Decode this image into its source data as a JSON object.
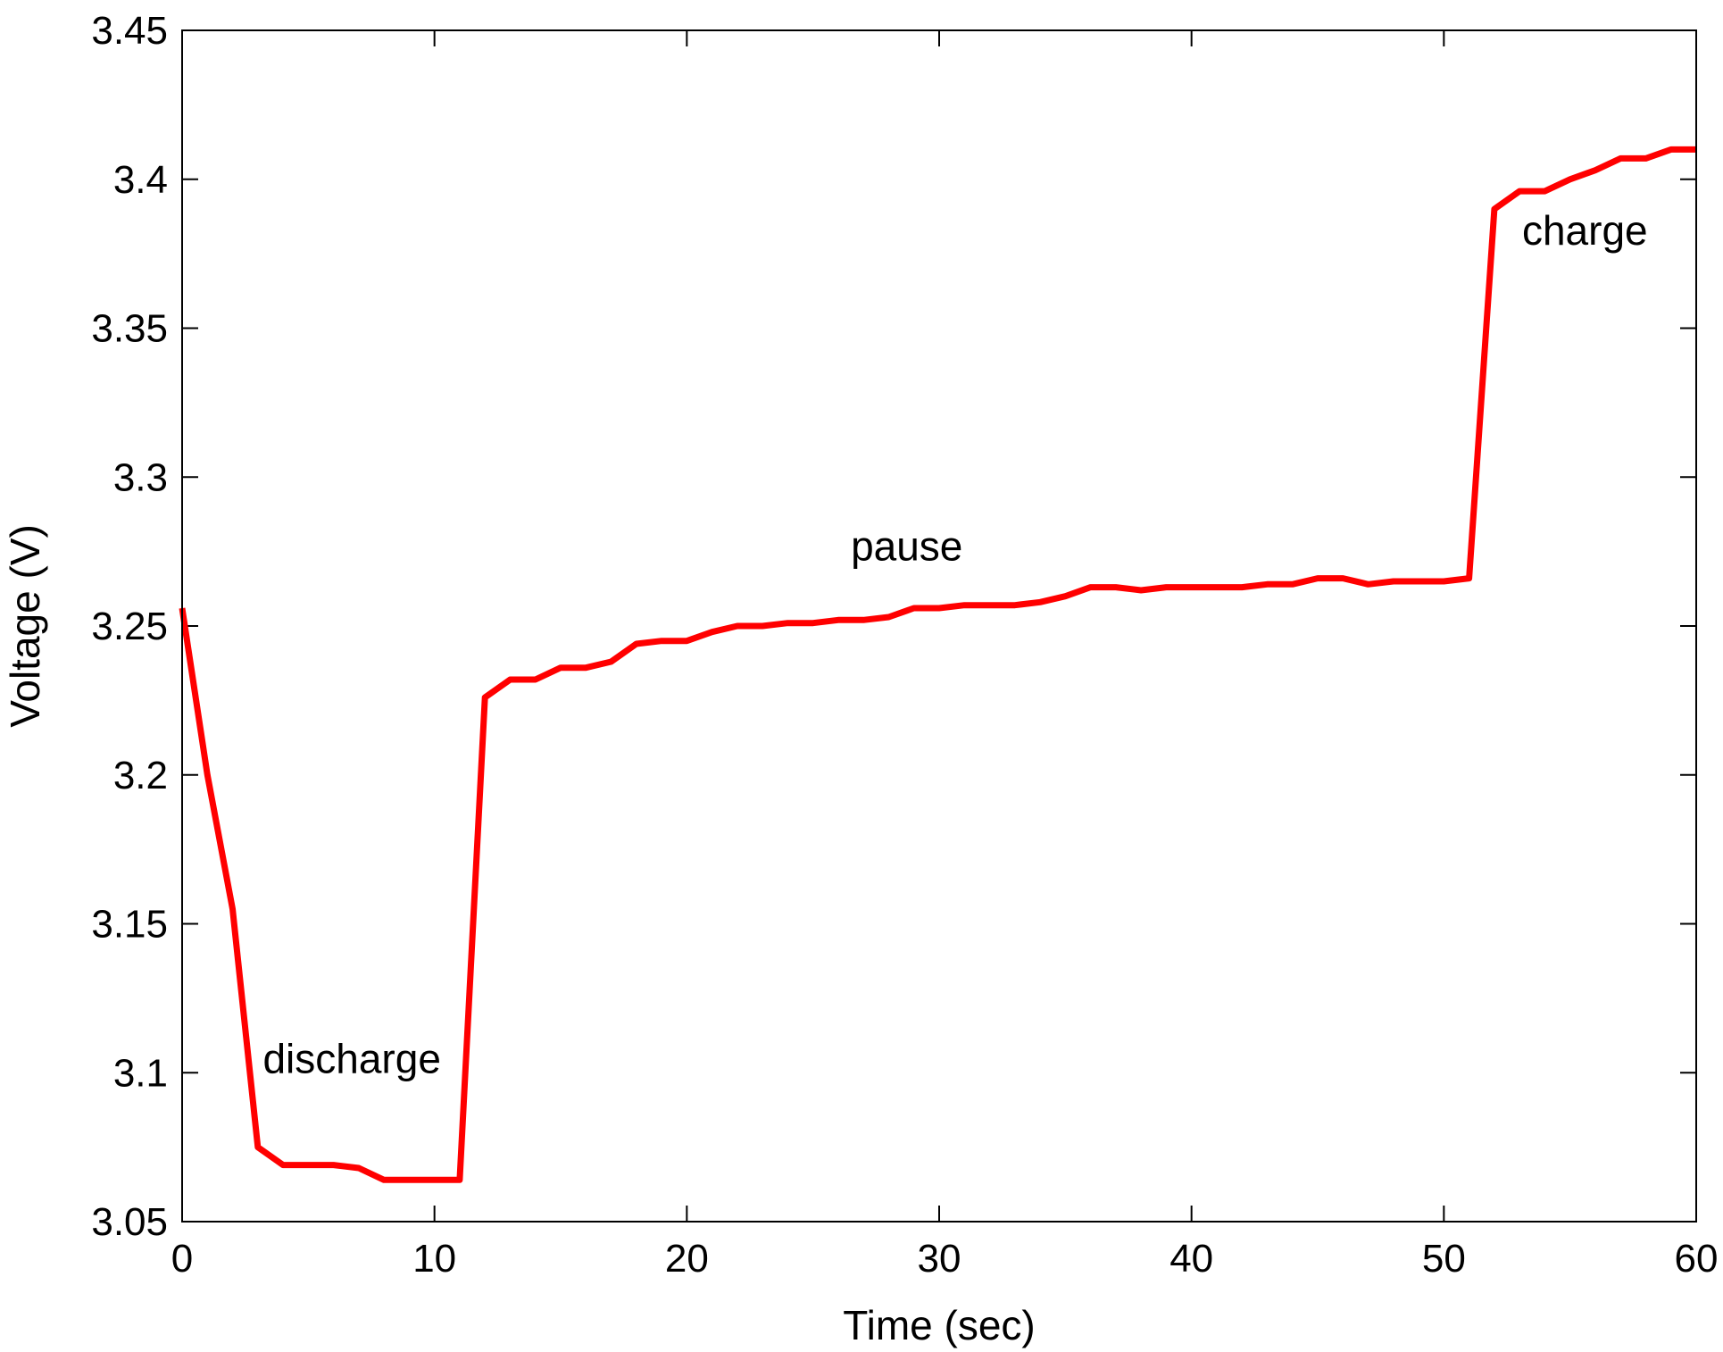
{
  "chart_data": {
    "type": "line",
    "title": "",
    "xlabel": "Time (sec)",
    "ylabel": "Voltage (V)",
    "xlim": [
      0,
      60
    ],
    "ylim": [
      3.05,
      3.45
    ],
    "xticks": [
      0,
      10,
      20,
      30,
      40,
      50,
      60
    ],
    "xtick_labels": [
      "0",
      "10",
      "20",
      "30",
      "40",
      "50",
      "60"
    ],
    "yticks": [
      3.05,
      3.1,
      3.15,
      3.2,
      3.25,
      3.3,
      3.35,
      3.4,
      3.45
    ],
    "ytick_labels": [
      "3.05",
      "3.1",
      "3.15",
      "3.2",
      "3.25",
      "3.3",
      "3.35",
      "3.4",
      "3.45"
    ],
    "grid": false,
    "series": [
      {
        "color": "#ff0000",
        "x": [
          0,
          1,
          2,
          3,
          4,
          5,
          6,
          7,
          8,
          9,
          10,
          11,
          12,
          13,
          14,
          15,
          16,
          17,
          18,
          19,
          20,
          21,
          22,
          23,
          24,
          25,
          26,
          27,
          28,
          29,
          30,
          31,
          32,
          33,
          34,
          35,
          36,
          37,
          38,
          39,
          40,
          41,
          42,
          43,
          44,
          45,
          46,
          47,
          48,
          49,
          50,
          51,
          52,
          53,
          54,
          55,
          56,
          57,
          58,
          59,
          60
        ],
        "y": [
          3.256,
          3.2,
          3.155,
          3.075,
          3.069,
          3.069,
          3.069,
          3.068,
          3.064,
          3.064,
          3.064,
          3.064,
          3.226,
          3.232,
          3.232,
          3.236,
          3.236,
          3.238,
          3.244,
          3.245,
          3.245,
          3.248,
          3.25,
          3.25,
          3.251,
          3.251,
          3.252,
          3.252,
          3.253,
          3.256,
          3.256,
          3.257,
          3.257,
          3.257,
          3.258,
          3.26,
          3.263,
          3.263,
          3.262,
          3.263,
          3.263,
          3.263,
          3.263,
          3.264,
          3.264,
          3.266,
          3.266,
          3.264,
          3.265,
          3.265,
          3.265,
          3.266,
          3.39,
          3.396,
          3.396,
          3.4,
          3.403,
          3.407,
          3.407,
          3.41,
          3.41
        ]
      }
    ],
    "annotations": [
      {
        "text": "discharge",
        "x": 3.2,
        "y": 3.1
      },
      {
        "text": "pause",
        "x": 26.5,
        "y": 3.272
      },
      {
        "text": "charge",
        "x": 53.1,
        "y": 3.378
      }
    ]
  }
}
